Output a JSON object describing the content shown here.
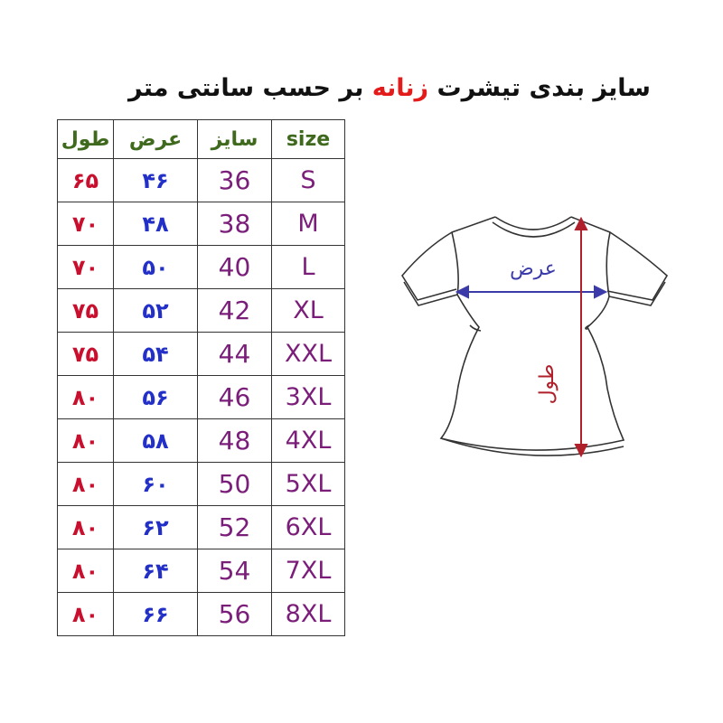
{
  "title": {
    "part1": "سایز بندی تیشرت",
    "highlight": "زنانه",
    "part2": "بر حسب سانتی متر"
  },
  "headers": {
    "length": "طول",
    "width": "عرض",
    "size_fa": "سایز",
    "size_en": "size"
  },
  "rows": [
    {
      "length": "۶۵",
      "width": "۴۶",
      "size_num": "36",
      "size": "S"
    },
    {
      "length": "۷۰",
      "width": "۴۸",
      "size_num": "38",
      "size": "M"
    },
    {
      "length": "۷۰",
      "width": "۵۰",
      "size_num": "40",
      "size": "L"
    },
    {
      "length": "۷۵",
      "width": "۵۲",
      "size_num": "42",
      "size": "XL"
    },
    {
      "length": "۷۵",
      "width": "۵۴",
      "size_num": "44",
      "size": "XXL"
    },
    {
      "length": "۸۰",
      "width": "۵۶",
      "size_num": "46",
      "size": "3XL"
    },
    {
      "length": "۸۰",
      "width": "۵۸",
      "size_num": "48",
      "size": "4XL"
    },
    {
      "length": "۸۰",
      "width": "۶۰",
      "size_num": "50",
      "size": "5XL"
    },
    {
      "length": "۸۰",
      "width": "۶۲",
      "size_num": "52",
      "size": "6XL"
    },
    {
      "length": "۸۰",
      "width": "۶۴",
      "size_num": "54",
      "size": "7XL"
    },
    {
      "length": "۸۰",
      "width": "۶۶",
      "size_num": "56",
      "size": "8XL"
    }
  ],
  "diagram": {
    "width_label": "عرض",
    "length_label": "طول",
    "width_color": "#3a3aa8",
    "length_color": "#b0202a"
  }
}
